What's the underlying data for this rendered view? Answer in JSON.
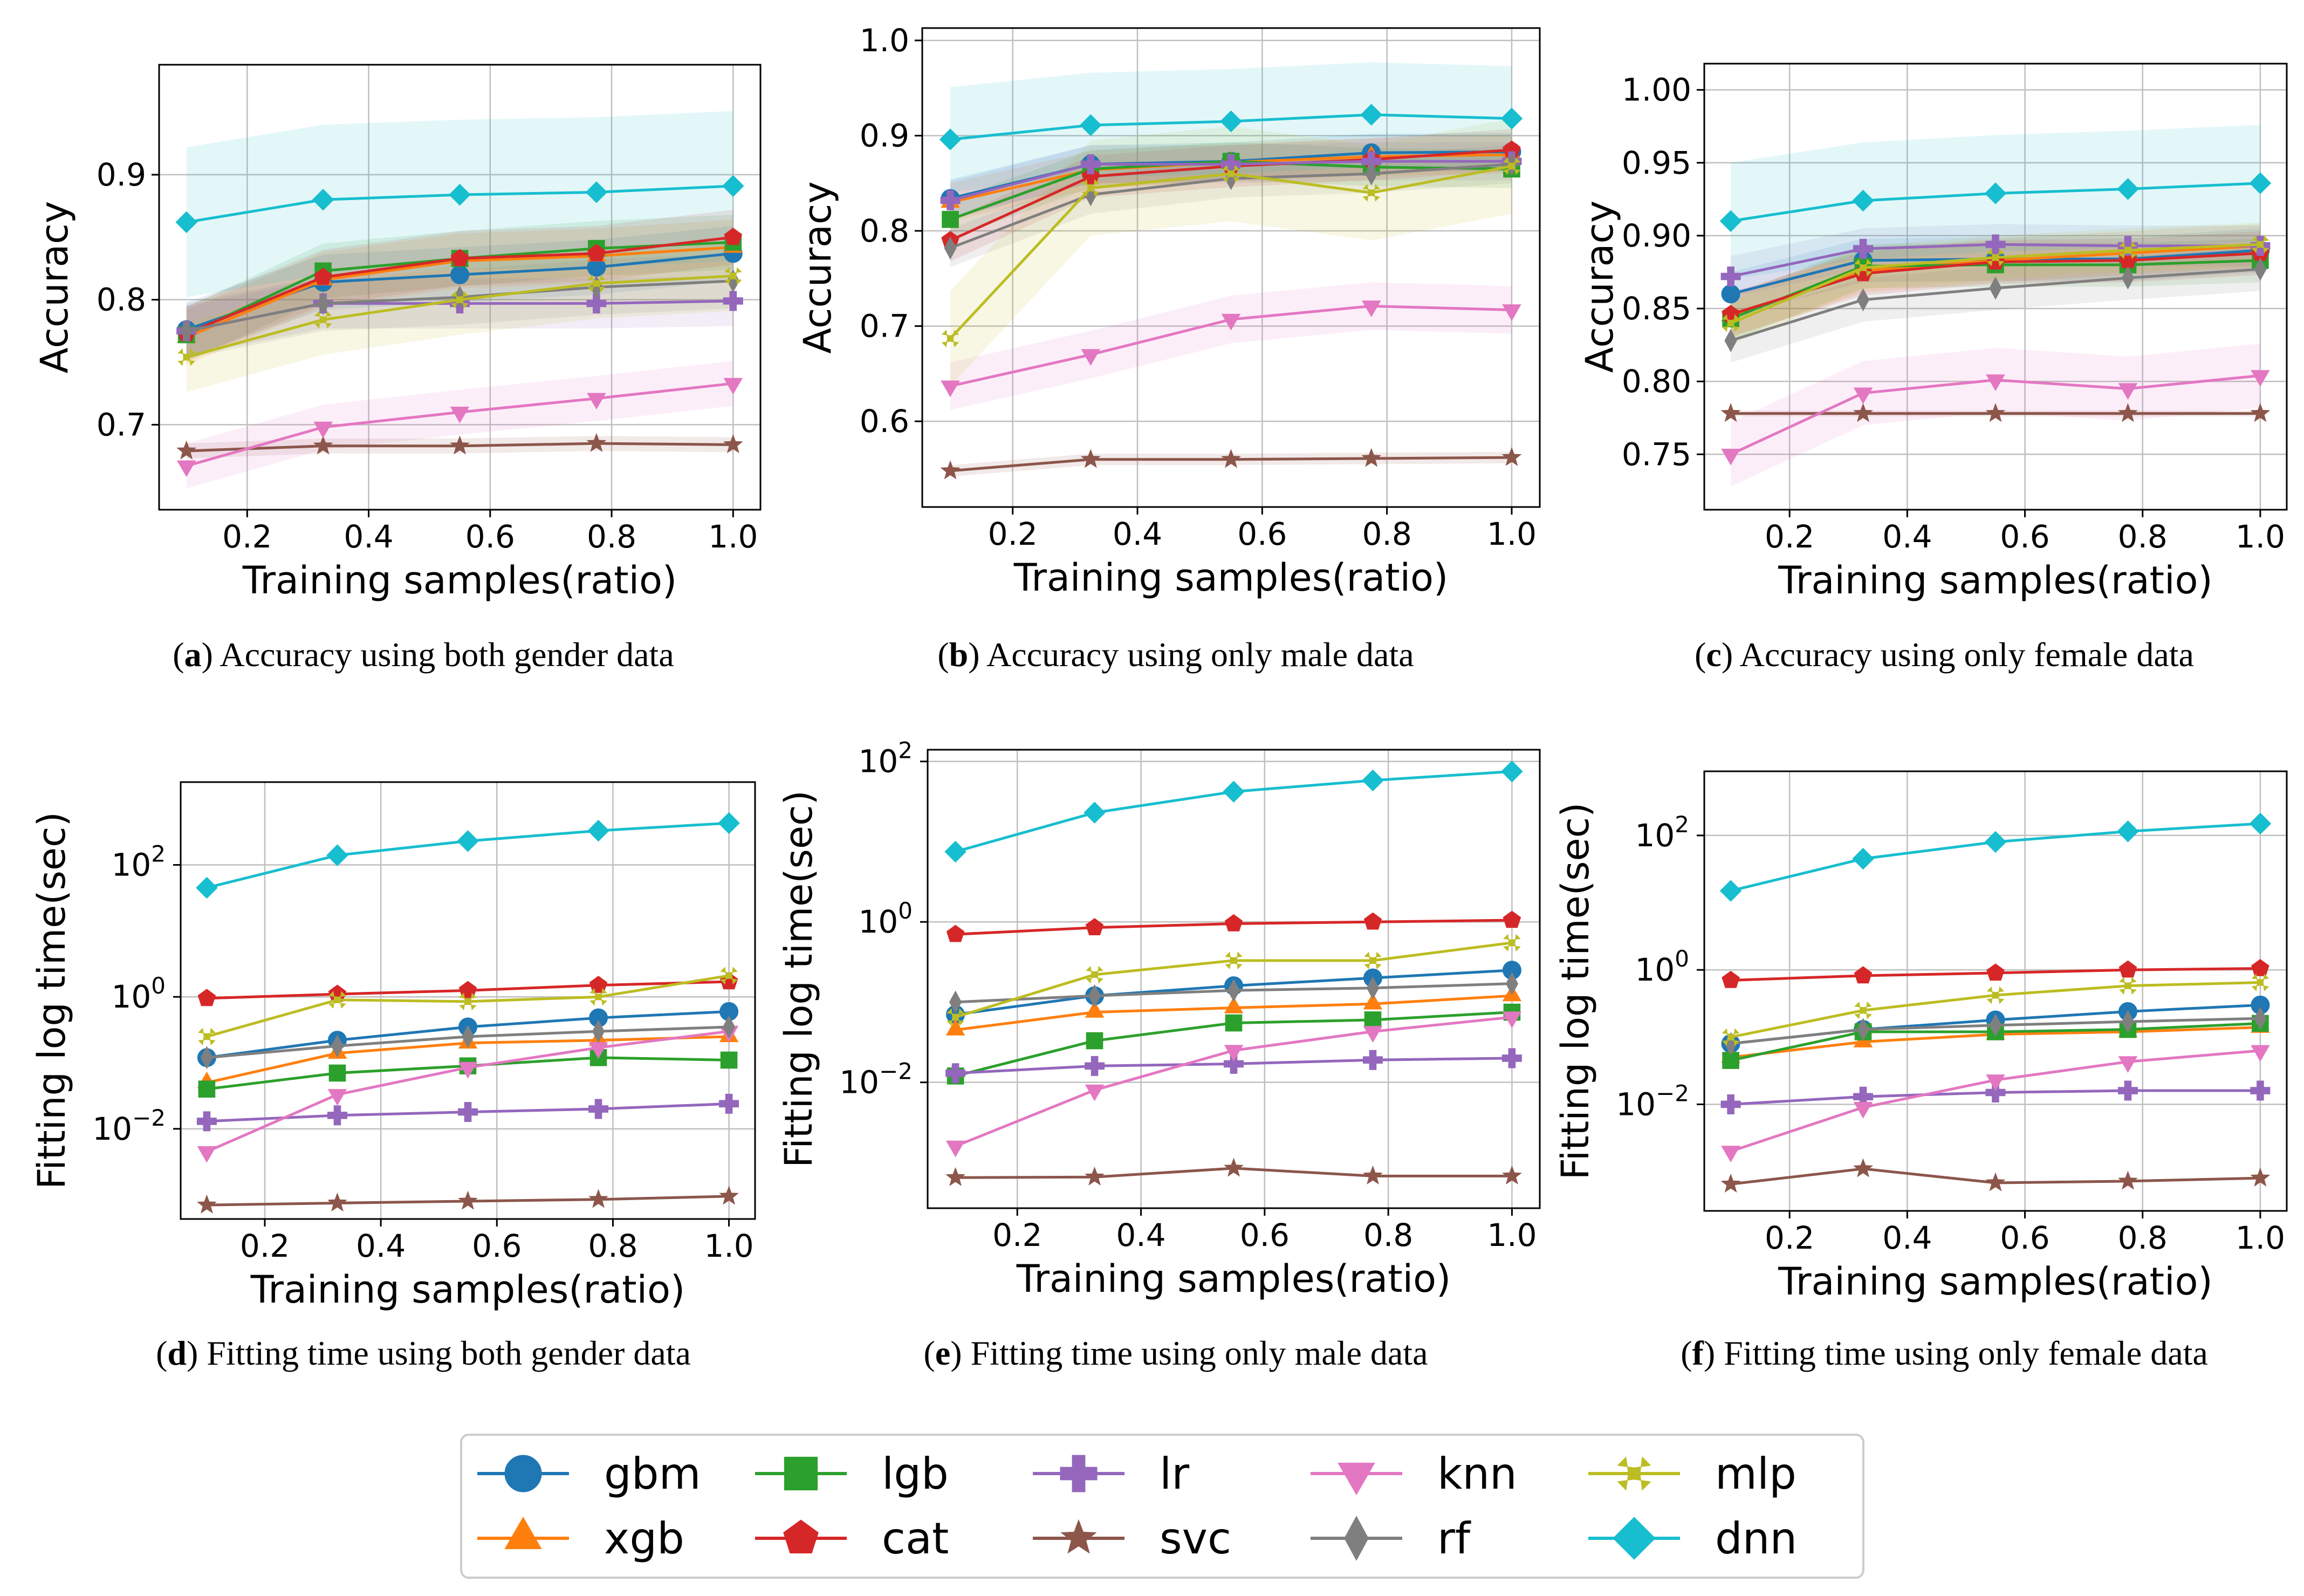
{
  "colors": {
    "gbm": "#1f77b4",
    "xgb": "#ff7f0e",
    "lgb": "#2ca02c",
    "cat": "#d62728",
    "lr": "#9467bd",
    "svc": "#8c564b",
    "knn": "#e377c2",
    "rf": "#7f7f7f",
    "mlp": "#bcbd22",
    "dnn": "#17becf"
  },
  "markers": {
    "gbm": "circle",
    "xgb": "triangle-up",
    "lgb": "square",
    "cat": "pentagon",
    "lr": "plus",
    "svc": "star",
    "knn": "triangle-down",
    "rf": "thin-diamond",
    "mlp": "x-filled",
    "dnn": "diamond"
  },
  "legend": {
    "entries": [
      "gbm",
      "lgb",
      "lr",
      "knn",
      "mlp",
      "xgb",
      "cat",
      "svc",
      "rf",
      "dnn"
    ],
    "placement": "bottom-center",
    "columns": 5
  },
  "chart_data": [
    {
      "id": "a",
      "type": "line",
      "ylabel": "Accuracy",
      "xlabel": "Training samples(ratio)",
      "caption_letter": "a",
      "caption_text": " Accuracy using both gender data",
      "yscale": "linear",
      "xlim": [
        0.055,
        1.045
      ],
      "ylim": [
        0.632,
        0.988
      ],
      "xticks": [
        0.2,
        0.4,
        0.6,
        0.8,
        1.0
      ],
      "xtick_labels": [
        "0.2",
        "0.4",
        "0.6",
        "0.8",
        "1.0"
      ],
      "yticks": [
        0.7,
        0.8,
        0.9
      ],
      "ytick_labels": [
        "0.7",
        "0.8",
        "0.9"
      ],
      "x": [
        0.1,
        0.325,
        0.55,
        0.775,
        1.0
      ],
      "series": [
        {
          "name": "gbm",
          "values": [
            0.776,
            0.814,
            0.82,
            0.826,
            0.837
          ],
          "band": 0.022
        },
        {
          "name": "xgb",
          "values": [
            0.77,
            0.816,
            0.831,
            0.835,
            0.842
          ],
          "band": 0.022
        },
        {
          "name": "lgb",
          "values": [
            0.772,
            0.823,
            0.833,
            0.841,
            0.846
          ],
          "band": 0.022
        },
        {
          "name": "cat",
          "values": [
            0.773,
            0.818,
            0.833,
            0.837,
            0.85
          ],
          "band": 0.022
        },
        {
          "name": "lr",
          "values": [
            0.775,
            0.797,
            0.797,
            0.797,
            0.799
          ],
          "band": 0.02
        },
        {
          "name": "svc",
          "values": [
            0.679,
            0.683,
            0.683,
            0.685,
            0.684
          ],
          "band": 0.006
        },
        {
          "name": "knn",
          "values": [
            0.667,
            0.698,
            0.71,
            0.721,
            0.733
          ],
          "band": 0.018
        },
        {
          "name": "rf",
          "values": [
            0.775,
            0.797,
            0.802,
            0.81,
            0.815
          ],
          "band": 0.022
        },
        {
          "name": "mlp",
          "values": [
            0.754,
            0.784,
            0.8,
            0.813,
            0.819
          ],
          "band": 0.028
        },
        {
          "name": "dnn",
          "values": [
            0.862,
            0.88,
            0.884,
            0.886,
            0.891
          ],
          "band": 0.06
        }
      ]
    },
    {
      "id": "b",
      "type": "line",
      "ylabel": "Accuracy",
      "xlabel": "Training samples(ratio)",
      "caption_letter": "b",
      "caption_text": " Accuracy using only male data",
      "yscale": "linear",
      "xlim": [
        0.055,
        1.045
      ],
      "ylim": [
        0.51,
        1.013
      ],
      "xticks": [
        0.2,
        0.4,
        0.6,
        0.8,
        1.0
      ],
      "xtick_labels": [
        "0.2",
        "0.4",
        "0.6",
        "0.8",
        "1.0"
      ],
      "yticks": [
        0.6,
        0.7,
        0.8,
        0.9,
        1.0
      ],
      "ytick_labels": [
        "0.6",
        "0.7",
        "0.8",
        "0.9",
        "1.0"
      ],
      "x": [
        0.1,
        0.325,
        0.55,
        0.775,
        1.0
      ],
      "series": [
        {
          "name": "gbm",
          "values": [
            0.834,
            0.87,
            0.873,
            0.882,
            0.883
          ],
          "band": 0.02
        },
        {
          "name": "xgb",
          "values": [
            0.83,
            0.864,
            0.872,
            0.878,
            0.88
          ],
          "band": 0.02
        },
        {
          "name": "lgb",
          "values": [
            0.812,
            0.865,
            0.873,
            0.867,
            0.865
          ],
          "band": 0.02
        },
        {
          "name": "cat",
          "values": [
            0.79,
            0.857,
            0.868,
            0.875,
            0.885
          ],
          "band": 0.022
        },
        {
          "name": "lr",
          "values": [
            0.832,
            0.87,
            0.87,
            0.873,
            0.873
          ],
          "band": 0.02
        },
        {
          "name": "svc",
          "values": [
            0.548,
            0.56,
            0.56,
            0.561,
            0.562
          ],
          "band": 0.006
        },
        {
          "name": "knn",
          "values": [
            0.637,
            0.67,
            0.707,
            0.721,
            0.717
          ],
          "band": 0.025
        },
        {
          "name": "rf",
          "values": [
            0.782,
            0.838,
            0.855,
            0.86,
            0.87
          ],
          "band": 0.02
        },
        {
          "name": "mlp",
          "values": [
            0.687,
            0.845,
            0.86,
            0.84,
            0.868
          ],
          "band": 0.05
        },
        {
          "name": "dnn",
          "values": [
            0.896,
            0.911,
            0.915,
            0.922,
            0.918
          ],
          "band": 0.055
        }
      ]
    },
    {
      "id": "c",
      "type": "line",
      "ylabel": "Accuracy",
      "xlabel": "Training samples(ratio)",
      "caption_letter": "c",
      "caption_text": " Accuracy using only female data",
      "yscale": "linear",
      "xlim": [
        0.055,
        1.045
      ],
      "ylim": [
        0.712,
        1.018
      ],
      "xticks": [
        0.2,
        0.4,
        0.6,
        0.8,
        1.0
      ],
      "xtick_labels": [
        "0.2",
        "0.4",
        "0.6",
        "0.8",
        "1.0"
      ],
      "yticks": [
        0.75,
        0.8,
        0.85,
        0.9,
        0.95,
        1.0
      ],
      "ytick_labels": [
        "0.75",
        "0.80",
        "0.85",
        "0.90",
        "0.95",
        "1.00"
      ],
      "x": [
        0.1,
        0.325,
        0.55,
        0.775,
        1.0
      ],
      "series": [
        {
          "name": "gbm",
          "values": [
            0.86,
            0.883,
            0.884,
            0.884,
            0.89
          ],
          "band": 0.015
        },
        {
          "name": "xgb",
          "values": [
            0.845,
            0.876,
            0.883,
            0.888,
            0.893
          ],
          "band": 0.015
        },
        {
          "name": "lgb",
          "values": [
            0.843,
            0.879,
            0.88,
            0.88,
            0.883
          ],
          "band": 0.015
        },
        {
          "name": "cat",
          "values": [
            0.846,
            0.874,
            0.882,
            0.883,
            0.888
          ],
          "band": 0.015
        },
        {
          "name": "lr",
          "values": [
            0.872,
            0.891,
            0.894,
            0.893,
            0.893
          ],
          "band": 0.014
        },
        {
          "name": "svc",
          "values": [
            0.778,
            0.778,
            0.778,
            0.778,
            0.778
          ],
          "band": 0.002
        },
        {
          "name": "knn",
          "values": [
            0.75,
            0.792,
            0.801,
            0.795,
            0.804
          ],
          "band": 0.022
        },
        {
          "name": "rf",
          "values": [
            0.828,
            0.856,
            0.864,
            0.871,
            0.877
          ],
          "band": 0.015
        },
        {
          "name": "mlp",
          "values": [
            0.84,
            0.878,
            0.885,
            0.89,
            0.894
          ],
          "band": 0.015
        },
        {
          "name": "dnn",
          "values": [
            0.91,
            0.924,
            0.929,
            0.932,
            0.936
          ],
          "band": 0.04
        }
      ]
    },
    {
      "id": "d",
      "type": "line",
      "ylabel": "Fitting log time(sec)",
      "xlabel": "Training samples(ratio)",
      "caption_letter": "d",
      "caption_text": " Fitting time using both gender data",
      "yscale": "log",
      "xlim": [
        0.055,
        1.045
      ],
      "ylim": [
        0.00043,
        1800
      ],
      "xticks": [
        0.2,
        0.4,
        0.6,
        0.8,
        1.0
      ],
      "xtick_labels": [
        "0.2",
        "0.4",
        "0.6",
        "0.8",
        "1.0"
      ],
      "yticks": [
        0.01,
        1,
        100
      ],
      "ytick_exponents": [
        "−2",
        "0",
        "2"
      ],
      "x": [
        0.1,
        0.325,
        0.55,
        0.775,
        1.0
      ],
      "series": [
        {
          "name": "gbm",
          "values": [
            0.12,
            0.22,
            0.35,
            0.48,
            0.6
          ],
          "band": 0.0
        },
        {
          "name": "xgb",
          "values": [
            0.05,
            0.14,
            0.2,
            0.22,
            0.25
          ],
          "band": 0.0
        },
        {
          "name": "lgb",
          "values": [
            0.04,
            0.07,
            0.09,
            0.12,
            0.11
          ],
          "band": 0.0
        },
        {
          "name": "cat",
          "values": [
            0.95,
            1.1,
            1.25,
            1.5,
            1.7
          ],
          "band": 0.0
        },
        {
          "name": "lr",
          "values": [
            0.013,
            0.016,
            0.018,
            0.02,
            0.024
          ],
          "band": 0.0
        },
        {
          "name": "svc",
          "values": [
            0.0007,
            0.00075,
            0.0008,
            0.00085,
            0.00095
          ],
          "band": 0.0
        },
        {
          "name": "knn",
          "values": [
            0.0045,
            0.033,
            0.085,
            0.17,
            0.3
          ],
          "band": 0.0
        },
        {
          "name": "rf",
          "values": [
            0.12,
            0.18,
            0.25,
            0.3,
            0.35
          ],
          "band": 0.0
        },
        {
          "name": "mlp",
          "values": [
            0.25,
            0.9,
            0.85,
            1.0,
            2.1
          ],
          "band": 0.0
        },
        {
          "name": "dnn",
          "values": [
            45,
            140,
            230,
            330,
            430
          ],
          "band": 0.0
        }
      ]
    },
    {
      "id": "e",
      "type": "line",
      "ylabel": "Fitting log time(sec)",
      "xlabel": "Training samples(ratio)",
      "caption_letter": "e",
      "caption_text": " Fitting time using only male data",
      "yscale": "log",
      "xlim": [
        0.055,
        1.045
      ],
      "ylim": [
        0.00027,
        140
      ],
      "xticks": [
        0.2,
        0.4,
        0.6,
        0.8,
        1.0
      ],
      "xtick_labels": [
        "0.2",
        "0.4",
        "0.6",
        "0.8",
        "1.0"
      ],
      "yticks": [
        0.01,
        1,
        100
      ],
      "ytick_exponents": [
        "−2",
        "0",
        "2"
      ],
      "x": [
        0.1,
        0.325,
        0.55,
        0.775,
        1.0
      ],
      "series": [
        {
          "name": "gbm",
          "values": [
            0.07,
            0.12,
            0.16,
            0.2,
            0.25
          ],
          "band": 0.0
        },
        {
          "name": "xgb",
          "values": [
            0.045,
            0.075,
            0.085,
            0.095,
            0.12
          ],
          "band": 0.0
        },
        {
          "name": "lgb",
          "values": [
            0.012,
            0.033,
            0.055,
            0.06,
            0.075
          ],
          "band": 0.0
        },
        {
          "name": "cat",
          "values": [
            0.7,
            0.85,
            0.95,
            1.0,
            1.05
          ],
          "band": 0.0
        },
        {
          "name": "lr",
          "values": [
            0.013,
            0.016,
            0.017,
            0.019,
            0.02
          ],
          "band": 0.0
        },
        {
          "name": "svc",
          "values": [
            0.00065,
            0.00066,
            0.00085,
            0.00068,
            0.00068
          ],
          "band": 0.0
        },
        {
          "name": "knn",
          "values": [
            0.0016,
            0.008,
            0.025,
            0.043,
            0.065
          ],
          "band": 0.0
        },
        {
          "name": "rf",
          "values": [
            0.1,
            0.12,
            0.14,
            0.15,
            0.17
          ],
          "band": 0.0
        },
        {
          "name": "mlp",
          "values": [
            0.065,
            0.22,
            0.33,
            0.33,
            0.55
          ],
          "band": 0.0
        },
        {
          "name": "dnn",
          "values": [
            7.5,
            23,
            42,
            58,
            75
          ],
          "band": 0.0
        }
      ]
    },
    {
      "id": "f",
      "type": "line",
      "ylabel": "Fitting log time(sec)",
      "xlabel": "Training samples(ratio)",
      "caption_letter": "f",
      "caption_text": " Fitting time using only female data",
      "yscale": "log",
      "xlim": [
        0.055,
        1.045
      ],
      "ylim": [
        0.00026,
        900
      ],
      "xticks": [
        0.2,
        0.4,
        0.6,
        0.8,
        1.0
      ],
      "xtick_labels": [
        "0.2",
        "0.4",
        "0.6",
        "0.8",
        "1.0"
      ],
      "yticks": [
        0.01,
        1,
        100
      ],
      "ytick_exponents": [
        "−2",
        "0",
        "2"
      ],
      "x": [
        0.1,
        0.325,
        0.55,
        0.775,
        1.0
      ],
      "series": [
        {
          "name": "gbm",
          "values": [
            0.08,
            0.13,
            0.18,
            0.24,
            0.3
          ],
          "band": 0.0
        },
        {
          "name": "xgb",
          "values": [
            0.05,
            0.085,
            0.11,
            0.12,
            0.14
          ],
          "band": 0.0
        },
        {
          "name": "lgb",
          "values": [
            0.045,
            0.12,
            0.12,
            0.13,
            0.16
          ],
          "band": 0.0
        },
        {
          "name": "cat",
          "values": [
            0.7,
            0.82,
            0.9,
            1.0,
            1.05
          ],
          "band": 0.0
        },
        {
          "name": "lr",
          "values": [
            0.01,
            0.013,
            0.015,
            0.016,
            0.016
          ],
          "band": 0.0
        },
        {
          "name": "svc",
          "values": [
            0.00065,
            0.0011,
            0.00068,
            0.00072,
            0.0008
          ],
          "band": 0.0
        },
        {
          "name": "knn",
          "values": [
            0.002,
            0.009,
            0.023,
            0.043,
            0.063
          ],
          "band": 0.0
        },
        {
          "name": "rf",
          "values": [
            0.08,
            0.13,
            0.15,
            0.17,
            0.19
          ],
          "band": 0.0
        },
        {
          "name": "mlp",
          "values": [
            0.1,
            0.25,
            0.42,
            0.58,
            0.65
          ],
          "band": 0.0
        },
        {
          "name": "dnn",
          "values": [
            15,
            45,
            80,
            115,
            150
          ],
          "band": 0.0
        }
      ]
    }
  ]
}
